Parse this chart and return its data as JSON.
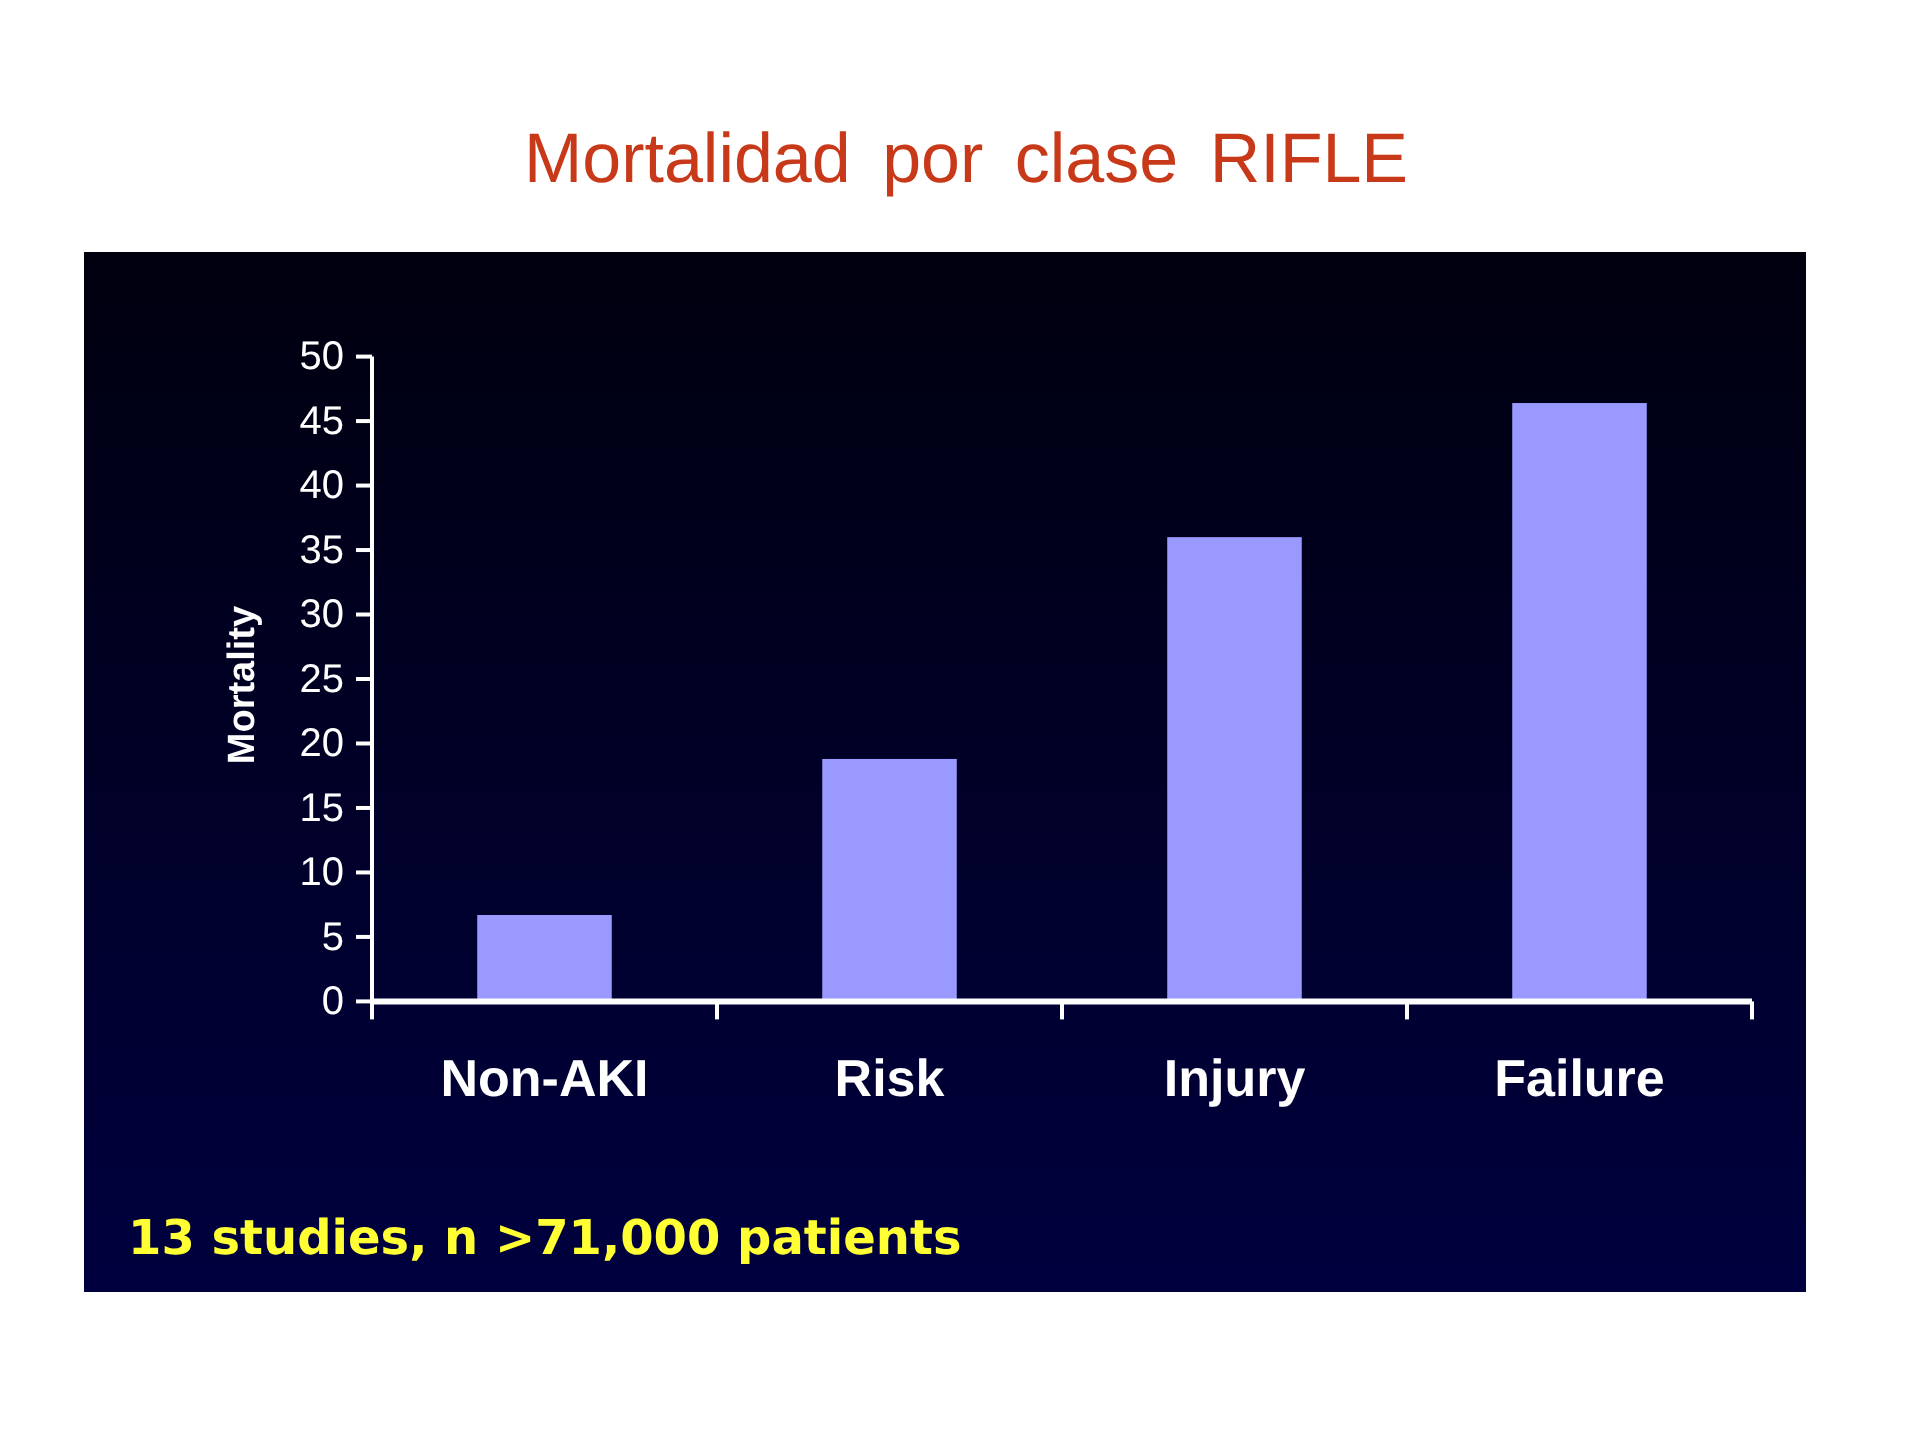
{
  "chart_data": {
    "type": "bar",
    "title": "Mortalidad por clase RIFLE",
    "ylabel": "Mortality",
    "categories": [
      "Non-AKI",
      "Risk",
      "Injury",
      "Failure"
    ],
    "values": [
      6.7,
      18.8,
      36.0,
      46.4
    ],
    "color": "#9999ff",
    "ylim": [
      0,
      50
    ],
    "yticks": [
      0,
      5,
      10,
      15,
      20,
      25,
      30,
      35,
      40,
      45,
      50
    ],
    "grid": false,
    "annotations": [
      "13 studies, n >71,000 patients"
    ]
  }
}
